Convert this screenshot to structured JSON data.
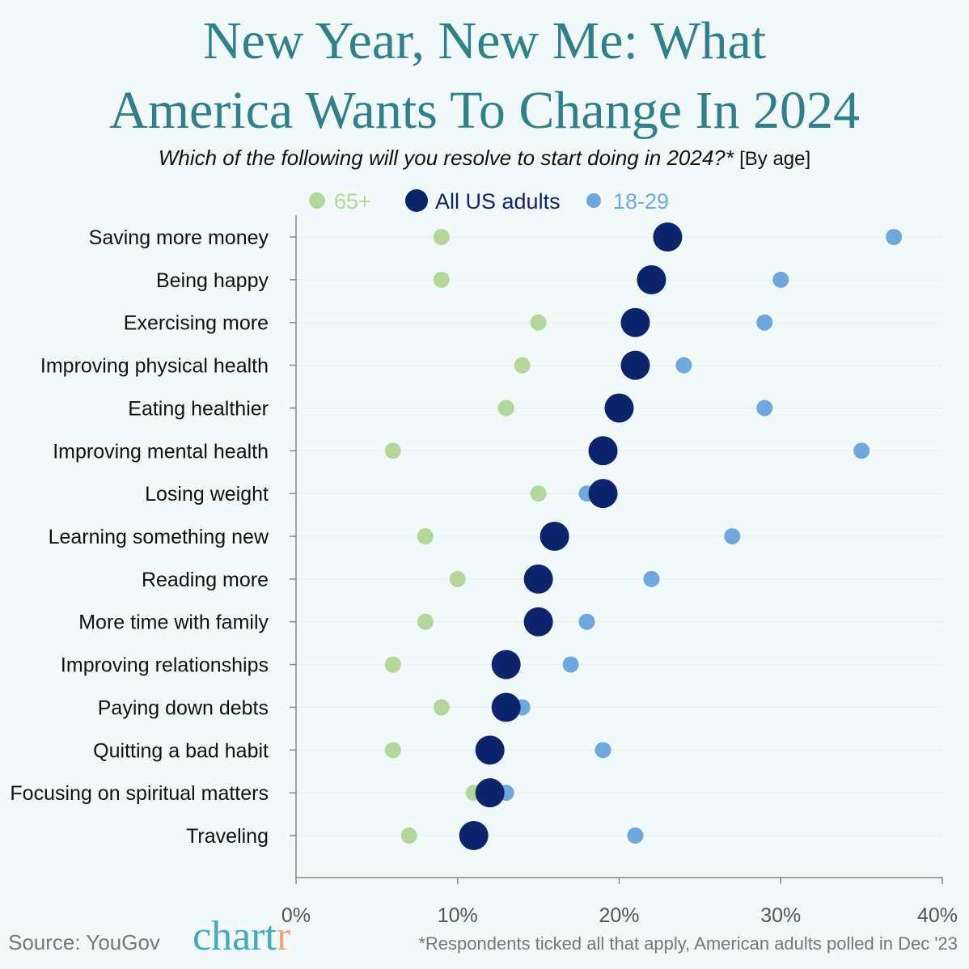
{
  "chart_data": {
    "type": "scatter",
    "title": "New Year, New Me: What America Wants To Change In 2024",
    "subtitle": "Which of the following will you resolve to start doing in 2024?*",
    "subtitle_note": "[By age]",
    "xlim": [
      0,
      40
    ],
    "x_ticks": [
      "0%",
      "10%",
      "20%",
      "30%",
      "40%"
    ],
    "grid": true,
    "legend_placement": "top",
    "categories": [
      "Saving more money",
      "Being happy",
      "Exercising more",
      "Improving physical health",
      "Eating healthier",
      "Improving mental health",
      "Losing weight",
      "Learning something new",
      "Reading more",
      "More time with family",
      "Improving relationships",
      "Paying down debts",
      "Quitting a bad habit",
      "Focusing on spiritual matters",
      "Traveling"
    ],
    "series": [
      {
        "name": "65+",
        "color": "#b3d69a",
        "values": [
          9,
          9,
          15,
          14,
          13,
          6,
          15,
          8,
          10,
          8,
          6,
          9,
          6,
          11,
          7
        ]
      },
      {
        "name": "All US adults",
        "color": "#0c246b",
        "values": [
          23,
          22,
          21,
          21,
          20,
          19,
          19,
          16,
          15,
          15,
          13,
          13,
          12,
          12,
          11
        ]
      },
      {
        "name": "18-29",
        "color": "#6fa8dc",
        "values": [
          37,
          30,
          29,
          24,
          29,
          35,
          18,
          27,
          22,
          18,
          17,
          14,
          19,
          13,
          21
        ]
      }
    ]
  },
  "footer": {
    "source": "Source: YouGov",
    "logo": "chartr",
    "note": "*Respondents ticked all that apply, American adults polled in Dec '23"
  }
}
